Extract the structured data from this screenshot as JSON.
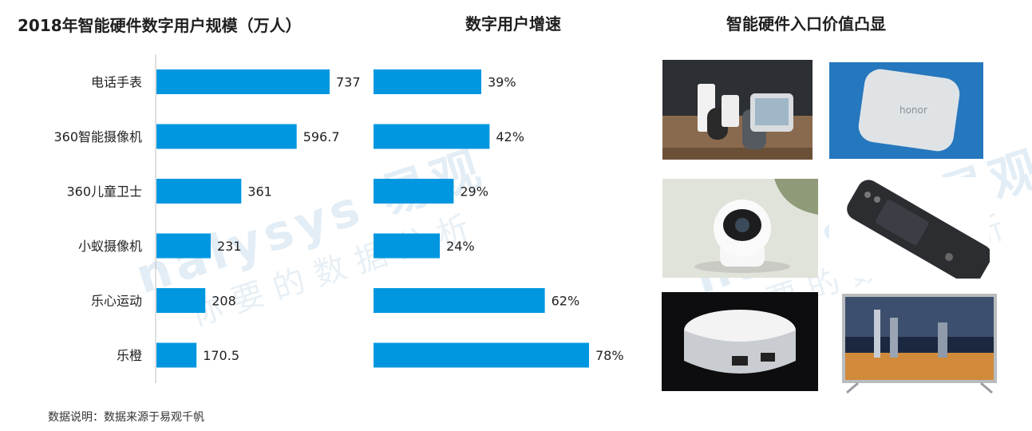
{
  "titles": {
    "left": "2018年智能硬件数字用户规模（万人）",
    "middle": "数字用户增速",
    "right": "智能硬件入口价值凸显"
  },
  "colors": {
    "bar": "#0097e0",
    "axis": "#bfbfbf"
  },
  "chart_data": [
    {
      "type": "bar",
      "orientation": "horizontal",
      "title": "2018年智能硬件数字用户规模（万人）",
      "categories": [
        "电话手表",
        "360智能摄像机",
        "360儿童卫士",
        "小蚁摄像机",
        "乐心运动",
        "乐橙"
      ],
      "values": [
        737,
        596.7,
        361,
        231,
        208,
        170.5
      ],
      "labels": [
        "737",
        "596.7",
        "361",
        "231",
        "208",
        "170.5"
      ]
    },
    {
      "type": "bar",
      "orientation": "horizontal",
      "title": "数字用户增速",
      "categories": [
        "电话手表",
        "360智能摄像机",
        "360儿童卫士",
        "小蚁摄像机",
        "乐心运动",
        "乐橙"
      ],
      "values": [
        39,
        42,
        29,
        24,
        62,
        78
      ],
      "labels": [
        "39%",
        "42%",
        "29%",
        "24%",
        "62%",
        "78%"
      ]
    }
  ],
  "note": "数据说明：数据来源于易观千帆",
  "watermark": {
    "brand": "nalysys 易观",
    "sub": "你要的数据分析"
  },
  "images": [
    "smart-speakers",
    "honor-box",
    "smart-camera",
    "remote-control",
    "router",
    "smart-tv"
  ]
}
